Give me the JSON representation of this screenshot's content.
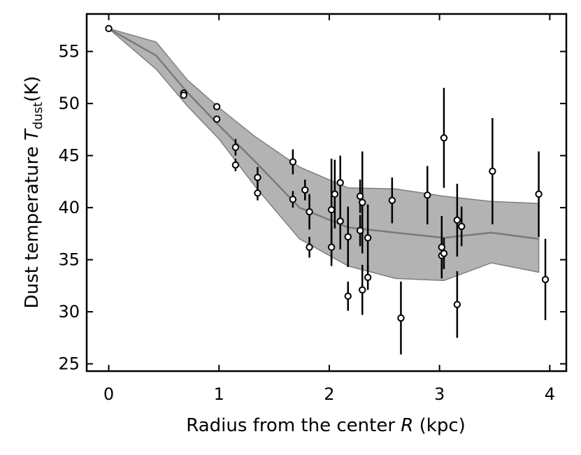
{
  "chart_data": {
    "type": "scatter",
    "title": "",
    "xlabel": {
      "pre": "Radius from the center ",
      "var": "R",
      "post": " (kpc)"
    },
    "ylabel": {
      "pre": "Dust temperature ",
      "var": "T",
      "sub": "dust",
      "post": "(K)"
    },
    "xlim": [
      -0.2,
      4.15
    ],
    "ylim": [
      24.3,
      58.6
    ],
    "xticks": [
      0,
      1,
      2,
      3,
      4
    ],
    "yticks": [
      25,
      30,
      35,
      40,
      45,
      50,
      55
    ],
    "grid": false,
    "legend": "none",
    "colors": {
      "band_fill": "#b3b3b3",
      "band_edge": "#7f7f7f",
      "median_line": "#7a7a7a",
      "marker_face": "#ffffff",
      "marker_edge": "#000000",
      "errorbar": "#000000"
    },
    "band": {
      "x": [
        0.0,
        0.43,
        0.71,
        1.0,
        1.33,
        1.73,
        2.17,
        2.6,
        3.04,
        3.47,
        3.9
      ],
      "lower": [
        57.2,
        53.3,
        49.8,
        46.6,
        42.0,
        37.0,
        34.4,
        33.2,
        33.0,
        34.7,
        33.8
      ],
      "median": [
        57.2,
        54.6,
        51.1,
        47.9,
        44.4,
        40.0,
        38.1,
        37.6,
        37.1,
        37.6,
        37.0
      ],
      "upper": [
        57.2,
        55.9,
        52.3,
        49.6,
        46.8,
        43.9,
        41.9,
        41.8,
        41.1,
        40.6,
        40.4
      ]
    },
    "points": [
      {
        "x": 0.0,
        "y": 57.2,
        "err": 0
      },
      {
        "x": 0.68,
        "y": 51.0,
        "err": 0
      },
      {
        "x": 0.68,
        "y": 50.8,
        "err": 0
      },
      {
        "x": 0.98,
        "y": 49.7,
        "err": 0
      },
      {
        "x": 0.98,
        "y": 48.5,
        "err": 0
      },
      {
        "x": 1.15,
        "y": 45.8,
        "err": 0.8
      },
      {
        "x": 1.15,
        "y": 44.1,
        "err": 0.6
      },
      {
        "x": 1.35,
        "y": 42.9,
        "err": 1.0
      },
      {
        "x": 1.35,
        "y": 41.4,
        "err": 0.7
      },
      {
        "x": 1.67,
        "y": 44.4,
        "err": 1.2
      },
      {
        "x": 1.67,
        "y": 40.8,
        "err": 0.8
      },
      {
        "x": 1.78,
        "y": 41.7,
        "err": 1.0
      },
      {
        "x": 1.82,
        "y": 39.6,
        "err": 1.7
      },
      {
        "x": 1.82,
        "y": 36.2,
        "err": 1.0
      },
      {
        "x": 2.02,
        "y": 39.8,
        "err": 4.9
      },
      {
        "x": 2.02,
        "y": 36.2,
        "err": 1.8
      },
      {
        "x": 2.05,
        "y": 41.3,
        "err": 3.3
      },
      {
        "x": 2.1,
        "y": 42.4,
        "err": 2.6
      },
      {
        "x": 2.1,
        "y": 38.7,
        "err": 2.7
      },
      {
        "x": 2.17,
        "y": 37.2,
        "err": 2.9
      },
      {
        "x": 2.17,
        "y": 31.5,
        "err": 1.4
      },
      {
        "x": 2.28,
        "y": 41.1,
        "err": 1.6
      },
      {
        "x": 2.28,
        "y": 37.8,
        "err": 1.5
      },
      {
        "x": 2.3,
        "y": 40.5,
        "err": 4.9
      },
      {
        "x": 2.3,
        "y": 32.1,
        "err": 2.4
      },
      {
        "x": 2.35,
        "y": 37.1,
        "err": 3.2
      },
      {
        "x": 2.35,
        "y": 33.3,
        "err": 1.2
      },
      {
        "x": 2.57,
        "y": 40.7,
        "err": 2.2
      },
      {
        "x": 2.65,
        "y": 29.4,
        "err": 3.5
      },
      {
        "x": 2.89,
        "y": 41.2,
        "err": 2.8
      },
      {
        "x": 3.02,
        "y": 36.2,
        "err": 3.0
      },
      {
        "x": 3.02,
        "y": 35.4,
        "err": 2.1
      },
      {
        "x": 3.04,
        "y": 46.7,
        "err": 4.8
      },
      {
        "x": 3.04,
        "y": 35.6,
        "err": 1.5
      },
      {
        "x": 3.16,
        "y": 38.8,
        "err": 3.5
      },
      {
        "x": 3.16,
        "y": 30.7,
        "err": 3.2
      },
      {
        "x": 3.2,
        "y": 38.2,
        "err": 1.9
      },
      {
        "x": 3.48,
        "y": 43.5,
        "err": 5.1
      },
      {
        "x": 3.9,
        "y": 41.3,
        "err": 4.1
      },
      {
        "x": 3.96,
        "y": 33.1,
        "err": 3.9
      }
    ]
  }
}
